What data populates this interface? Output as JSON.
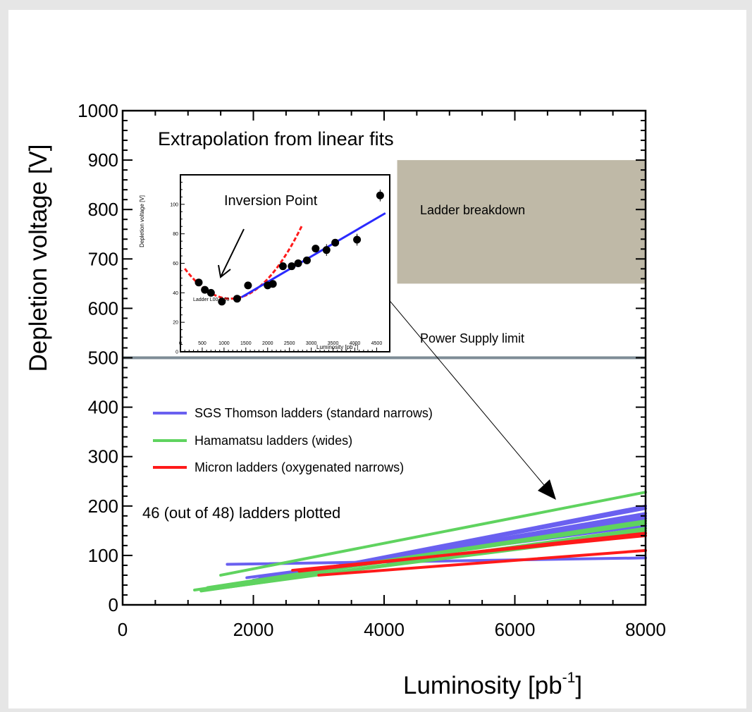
{
  "chart_data": {
    "type": "line",
    "xlabel": "Luminosity [pb",
    "xlabel_sup": "-1",
    "xlabel_close": "]",
    "ylabel": "Depletion voltage [V]",
    "xlim": [
      0,
      8000
    ],
    "ylim": [
      0,
      1000
    ],
    "x_ticks": [
      "0",
      "2000",
      "4000",
      "6000",
      "8000"
    ],
    "y_ticks": [
      "0",
      "100",
      "200",
      "300",
      "400",
      "500",
      "600",
      "700",
      "800",
      "900",
      "1000"
    ],
    "grid": false,
    "annotations": {
      "title_text": "Extrapolation from linear fits",
      "breakdown_label": "Ladder breakdown",
      "power_supply_label": "Power Supply limit",
      "count_text": "46 (out of 48) ladders plotted"
    },
    "breakdown_region": {
      "x": [
        4200,
        8000
      ],
      "y": [
        650,
        900
      ],
      "color": "#bfb9a7"
    },
    "power_supply_limit": {
      "y": 500,
      "color": "#7e8c96"
    },
    "legend": {
      "placement": "center-left",
      "entries": [
        {
          "label": "SGS Thomson ladders (standard narrows)",
          "color": "#6a60f0"
        },
        {
          "label": "Hamamatsu ladders (wides)",
          "color": "#5fd35f"
        },
        {
          "label": "Micron ladders (oxygenated narrows)",
          "color": "#ff1a1a"
        }
      ]
    },
    "series": [
      {
        "color": "#6a60f0",
        "x": [
          1600,
          8000
        ],
        "y": [
          82,
          95
        ]
      },
      {
        "color": "#6a60f0",
        "x": [
          1800,
          8000
        ],
        "y": [
          40,
          195
        ]
      },
      {
        "color": "#6a60f0",
        "x": [
          1850,
          8000
        ],
        "y": [
          42,
          200
        ]
      },
      {
        "color": "#6a60f0",
        "x": [
          1900,
          8000
        ],
        "y": [
          45,
          185
        ]
      },
      {
        "color": "#6a60f0",
        "x": [
          1950,
          8000
        ],
        "y": [
          45,
          175
        ]
      },
      {
        "color": "#6a60f0",
        "x": [
          2000,
          8000
        ],
        "y": [
          50,
          180
        ]
      },
      {
        "color": "#6a60f0",
        "x": [
          2100,
          8000
        ],
        "y": [
          55,
          170
        ]
      },
      {
        "color": "#6a60f0",
        "x": [
          1900,
          8000
        ],
        "y": [
          55,
          160
        ]
      },
      {
        "color": "#5fd35f",
        "x": [
          1500,
          8000
        ],
        "y": [
          60,
          228
        ]
      },
      {
        "color": "#5fd35f",
        "x": [
          1100,
          8000
        ],
        "y": [
          30,
          165
        ]
      },
      {
        "color": "#5fd35f",
        "x": [
          1200,
          8000
        ],
        "y": [
          28,
          155
        ]
      },
      {
        "color": "#5fd35f",
        "x": [
          1300,
          8000
        ],
        "y": [
          35,
          170
        ]
      },
      {
        "color": "#5fd35f",
        "x": [
          1400,
          8000
        ],
        "y": [
          32,
          150
        ]
      },
      {
        "color": "#5fd35f",
        "x": [
          1700,
          8000
        ],
        "y": [
          40,
          145
        ]
      },
      {
        "color": "#ff1a1a",
        "x": [
          2600,
          8000
        ],
        "y": [
          70,
          140
        ]
      },
      {
        "color": "#ff1a1a",
        "x": [
          2700,
          8000
        ],
        "y": [
          68,
          145
        ]
      },
      {
        "color": "#ff1a1a",
        "x": [
          3000,
          8000
        ],
        "y": [
          60,
          110
        ]
      }
    ],
    "inset": {
      "type": "scatter",
      "label": "Inversion Point",
      "ylabel": "Depletion voltage [V]",
      "xlabel": "Luminosity [pb",
      "xlabel_sup": "-1",
      "xlabel_close": "]",
      "ladder_label": "Ladder L00-f800",
      "xlim": [
        0,
        4800
      ],
      "ylim": [
        0,
        120
      ],
      "x_ticks": [
        "0",
        "500",
        "1000",
        "1500",
        "2000",
        "2500",
        "3000",
        "3500",
        "4000",
        "4500"
      ],
      "y_ticks": [
        "0",
        "20",
        "40",
        "60",
        "80",
        "100"
      ],
      "points": [
        {
          "x": 420,
          "y": 47,
          "err": 2
        },
        {
          "x": 560,
          "y": 42,
          "err": 2
        },
        {
          "x": 700,
          "y": 40,
          "err": 2
        },
        {
          "x": 950,
          "y": 34,
          "err": 2
        },
        {
          "x": 1300,
          "y": 36,
          "err": 2
        },
        {
          "x": 1550,
          "y": 45,
          "err": 2
        },
        {
          "x": 2000,
          "y": 45,
          "err": 2
        },
        {
          "x": 2120,
          "y": 46,
          "err": 2
        },
        {
          "x": 2350,
          "y": 58,
          "err": 2
        },
        {
          "x": 2550,
          "y": 58,
          "err": 2
        },
        {
          "x": 2700,
          "y": 60,
          "err": 2
        },
        {
          "x": 2900,
          "y": 62,
          "err": 2
        },
        {
          "x": 3100,
          "y": 70,
          "err": 2
        },
        {
          "x": 3350,
          "y": 69,
          "err": 4
        },
        {
          "x": 3550,
          "y": 74,
          "err": 2
        },
        {
          "x": 4050,
          "y": 76,
          "err": 4
        },
        {
          "x": 4580,
          "y": 106,
          "err": 4
        }
      ],
      "fit_quadratic": {
        "color": "#ff1a1a",
        "x_range": [
          100,
          2800
        ],
        "vertex_x": 1150,
        "vertex_y": 36,
        "a": 1.85e-05
      },
      "fit_linear": {
        "color": "#2a2aff",
        "x": [
          1400,
          4700
        ],
        "y": [
          37,
          94
        ]
      }
    }
  }
}
